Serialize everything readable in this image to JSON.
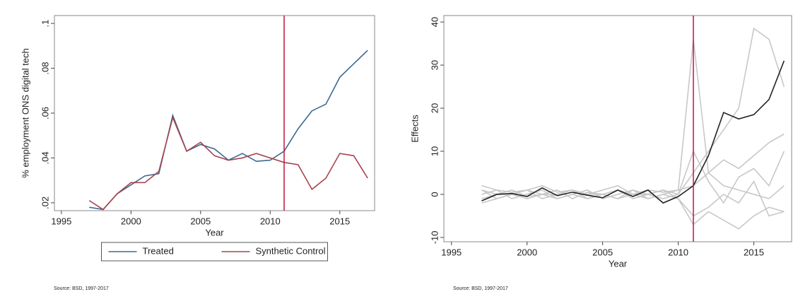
{
  "chart_data": [
    {
      "type": "line",
      "xlabel": "Year",
      "ylabel": "% employment ONS digital tech",
      "source": "Source: BSD, 1997-2017",
      "x": [
        1997,
        1998,
        1999,
        2000,
        2001,
        2002,
        2003,
        2004,
        2005,
        2006,
        2007,
        2008,
        2009,
        2010,
        2011,
        2012,
        2013,
        2014,
        2015,
        2016,
        2017
      ],
      "series": [
        {
          "name": "Treated",
          "color": "#3b6a8f",
          "values": [
            0.018,
            0.017,
            0.024,
            0.028,
            0.032,
            0.033,
            0.059,
            0.043,
            0.046,
            0.044,
            0.039,
            0.042,
            0.0385,
            0.039,
            0.043,
            0.053,
            0.061,
            0.064,
            0.076,
            0.082,
            0.088
          ]
        },
        {
          "name": "Synthetic Control",
          "color": "#a8434f",
          "values": [
            0.021,
            0.017,
            0.024,
            0.029,
            0.029,
            0.034,
            0.058,
            0.043,
            0.047,
            0.041,
            0.039,
            0.04,
            0.042,
            0.04,
            0.038,
            0.037,
            0.026,
            0.031,
            0.042,
            0.041,
            0.031
          ]
        }
      ],
      "xlim": [
        1994.5,
        2017.5
      ],
      "xticks": [
        1995,
        2000,
        2005,
        2010,
        2015
      ],
      "ylim": [
        0.0165,
        0.1035
      ],
      "yticks": [
        {
          "value": 0.02,
          "label": ".02"
        },
        {
          "value": 0.04,
          "label": ".04"
        },
        {
          "value": 0.06,
          "label": ".06"
        },
        {
          "value": 0.08,
          "label": ".08"
        },
        {
          "value": 0.1,
          "label": ".1"
        }
      ],
      "vline": 2011,
      "vline_color": "#c0143c",
      "legend": "bottom"
    },
    {
      "type": "line",
      "xlabel": "Year",
      "ylabel": "Effects",
      "source": "Source: BSD, 1997-2017",
      "x": [
        1997,
        1998,
        1999,
        2000,
        2001,
        2002,
        2003,
        2004,
        2005,
        2006,
        2007,
        2008,
        2009,
        2010,
        2011,
        2012,
        2013,
        2014,
        2015,
        2016,
        2017
      ],
      "series": [
        {
          "color": "#c8c8c8",
          "values": [
            2,
            1,
            0.5,
            1,
            2,
            0.5,
            1,
            0,
            1,
            2,
            0,
            1,
            0.5,
            1,
            36,
            5,
            2,
            1,
            0,
            -1,
            2
          ]
        },
        {
          "color": "#c8c8c8",
          "values": [
            -1,
            0,
            1,
            -0.5,
            0,
            1,
            -1,
            0.5,
            0,
            -1,
            1,
            0,
            -1,
            0,
            5,
            10,
            15,
            20,
            38.5,
            36,
            25
          ]
        },
        {
          "color": "#c8c8c8",
          "values": [
            1,
            -1,
            0,
            1,
            -1,
            0,
            1,
            -1,
            0,
            1,
            -1,
            0,
            1,
            -1,
            -5,
            -3,
            0,
            -2,
            3,
            -5,
            -4
          ]
        },
        {
          "color": "#c8c8c8",
          "values": [
            0,
            1,
            -1,
            0,
            1,
            -1,
            0,
            1,
            -1,
            0,
            1,
            -1,
            0,
            1,
            2,
            5,
            8,
            6,
            9,
            12,
            14
          ]
        },
        {
          "color": "#c8c8c8",
          "values": [
            -2,
            -1,
            0,
            -1,
            0,
            -1,
            0,
            -1,
            0,
            -1,
            0,
            -1,
            0,
            -1,
            -7,
            -4,
            -6,
            -8,
            -5,
            -3,
            -4
          ]
        },
        {
          "color": "#c8c8c8",
          "values": [
            1,
            0,
            0,
            1,
            0,
            0,
            1,
            0,
            0,
            1,
            0,
            0,
            1,
            0,
            10,
            3,
            -2,
            4,
            6,
            2,
            10
          ]
        },
        {
          "color": "#222222",
          "values": [
            -1.5,
            0,
            0.2,
            -0.5,
            1.5,
            -0.3,
            0.5,
            -0.2,
            -0.8,
            1,
            -0.5,
            1,
            -2,
            -0.5,
            2,
            9,
            19,
            17.5,
            18.5,
            22,
            31
          ]
        }
      ],
      "xlim": [
        1994.5,
        2017.5
      ],
      "xticks": [
        1995,
        2000,
        2005,
        2010,
        2015
      ],
      "ylim": [
        -11,
        41.5
      ],
      "yticks": [
        -10,
        0,
        10,
        20,
        30,
        40
      ],
      "vline": 2011,
      "vline_color": "#c0143c"
    }
  ]
}
